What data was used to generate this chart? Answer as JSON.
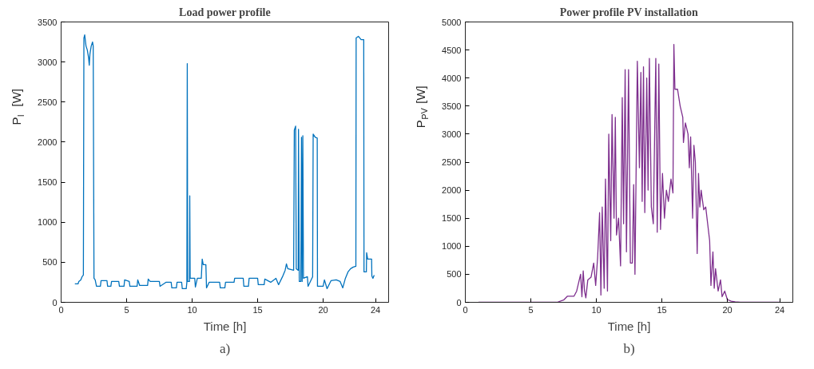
{
  "chart_data": [
    {
      "type": "line",
      "title": "Load power profile",
      "xlabel": "Time [h]",
      "ylabel": "P$_{l}$ [W]",
      "annotations": [
        "a)"
      ],
      "xlim": [
        0,
        25
      ],
      "xticks": [
        0,
        5,
        10,
        15,
        20,
        24
      ],
      "ylim": [
        0,
        3500
      ],
      "yticks": [
        0,
        500,
        1000,
        1500,
        2000,
        2500,
        3000,
        3500
      ],
      "grid": false,
      "x": [
        1.05,
        1.3,
        1.35,
        1.5,
        1.6,
        1.7,
        1.74,
        1.8,
        1.9,
        2.0,
        2.1,
        2.15,
        2.2,
        2.3,
        2.4,
        2.45,
        2.51,
        2.6,
        2.7,
        3.0,
        3.05,
        3.5,
        3.55,
        3.8,
        3.85,
        4.4,
        4.45,
        4.8,
        4.85,
        5.2,
        5.25,
        5.8,
        5.85,
        6.0,
        6.6,
        6.65,
        6.8,
        7.5,
        7.55,
        8.0,
        8.4,
        8.45,
        8.8,
        8.85,
        9.2,
        9.25,
        9.55,
        9.6,
        9.63,
        9.66,
        9.8,
        9.82,
        9.85,
        10.2,
        10.25,
        10.4,
        10.7,
        10.77,
        10.85,
        11.05,
        11.1,
        11.3,
        12.1,
        12.15,
        12.5,
        12.55,
        13.2,
        13.25,
        13.9,
        13.95,
        14.3,
        14.35,
        15.0,
        15.05,
        15.5,
        15.55,
        16.0,
        16.4,
        16.6,
        16.9,
        17.1,
        17.2,
        17.3,
        17.75,
        17.8,
        17.9,
        17.95,
        18.1,
        18.12,
        18.18,
        18.3,
        18.35,
        18.4,
        18.45,
        18.5,
        18.8,
        18.85,
        19.2,
        19.24,
        19.4,
        19.55,
        19.57,
        20.0,
        20.1,
        20.3,
        20.6,
        21.0,
        21.3,
        21.5,
        21.7,
        21.9,
        22.1,
        22.3,
        22.5,
        22.52,
        22.7,
        22.9,
        23.1,
        23.12,
        23.3,
        23.32,
        23.4,
        23.7,
        23.72,
        23.8,
        23.9
      ],
      "series": [
        {
          "color": "#0072bd",
          "values": [
            230,
            230,
            260,
            280,
            320,
            340,
            3300,
            3340,
            3200,
            3150,
            3050,
            2960,
            3100,
            3200,
            3250,
            3200,
            300,
            280,
            200,
            200,
            270,
            270,
            200,
            200,
            260,
            260,
            200,
            200,
            280,
            260,
            200,
            200,
            280,
            210,
            210,
            290,
            260,
            260,
            200,
            250,
            250,
            180,
            180,
            250,
            250,
            170,
            170,
            250,
            2980,
            260,
            260,
            1330,
            300,
            300,
            190,
            300,
            300,
            540,
            470,
            470,
            180,
            250,
            250,
            180,
            180,
            250,
            250,
            300,
            300,
            200,
            200,
            300,
            300,
            220,
            220,
            290,
            250,
            300,
            220,
            320,
            400,
            480,
            420,
            400,
            2150,
            2200,
            420,
            400,
            2160,
            260,
            260,
            2060,
            260,
            2080,
            300,
            320,
            200,
            320,
            2100,
            2060,
            2050,
            200,
            200,
            280,
            170,
            270,
            280,
            260,
            180,
            300,
            380,
            420,
            440,
            450,
            3300,
            3320,
            3280,
            3280,
            380,
            380,
            620,
            540,
            540,
            330,
            300,
            340
          ]
        }
      ]
    },
    {
      "type": "line",
      "title": "Power profile PV installation",
      "xlabel": "Time [h]",
      "ylabel": "P$_{PV}$ [W]",
      "annotations": [
        "b)"
      ],
      "xlim": [
        0,
        25
      ],
      "xticks": [
        0,
        5,
        10,
        15,
        20,
        24
      ],
      "ylim": [
        0,
        5000
      ],
      "yticks": [
        0,
        500,
        1000,
        1500,
        2000,
        2500,
        3000,
        3500,
        4000,
        4500,
        5000
      ],
      "grid": false,
      "x": [
        1.0,
        6.5,
        7.0,
        7.5,
        7.8,
        8.3,
        8.5,
        8.8,
        8.9,
        9.0,
        9.1,
        9.2,
        9.35,
        9.6,
        9.8,
        9.95,
        10.1,
        10.25,
        10.35,
        10.45,
        10.6,
        10.7,
        10.85,
        10.95,
        11.1,
        11.2,
        11.35,
        11.45,
        11.54,
        11.7,
        11.85,
        11.98,
        12.08,
        12.2,
        12.3,
        12.46,
        12.6,
        12.75,
        12.85,
        12.95,
        13.13,
        13.29,
        13.4,
        13.5,
        13.6,
        13.7,
        13.85,
        13.95,
        14.05,
        14.2,
        14.35,
        14.54,
        14.65,
        14.77,
        14.9,
        15.05,
        15.2,
        15.35,
        15.5,
        15.7,
        15.85,
        15.92,
        16.0,
        16.2,
        16.4,
        16.6,
        16.65,
        16.8,
        17.0,
        17.1,
        17.2,
        17.35,
        17.45,
        17.56,
        17.7,
        17.8,
        17.9,
        18.0,
        18.2,
        18.35,
        18.5,
        18.65,
        18.75,
        18.9,
        19.0,
        19.1,
        19.3,
        19.48,
        19.6,
        19.8,
        20.0,
        20.3,
        20.6,
        21.0,
        24.0
      ],
      "series": [
        {
          "color": "#7e2f8e",
          "values": [
            0,
            0,
            0,
            40,
            110,
            110,
            200,
            500,
            100,
            560,
            200,
            80,
            400,
            450,
            700,
            300,
            800,
            1600,
            130,
            1700,
            250,
            2200,
            200,
            3000,
            1100,
            3350,
            1500,
            3300,
            1200,
            1500,
            650,
            3650,
            1400,
            4150,
            900,
            4150,
            700,
            700,
            2100,
            500,
            4300,
            2400,
            4100,
            1800,
            4200,
            1600,
            4000,
            2000,
            4350,
            1700,
            1400,
            4350,
            1250,
            4250,
            1300,
            2300,
            1500,
            2000,
            1800,
            2200,
            1950,
            4600,
            3800,
            3800,
            3500,
            3300,
            2850,
            3200,
            3000,
            2400,
            2950,
            1500,
            2800,
            2500,
            870,
            2300,
            1700,
            2000,
            1650,
            1700,
            1400,
            1100,
            300,
            900,
            250,
            600,
            200,
            400,
            100,
            200,
            50,
            20,
            10,
            0,
            0
          ]
        }
      ]
    }
  ]
}
